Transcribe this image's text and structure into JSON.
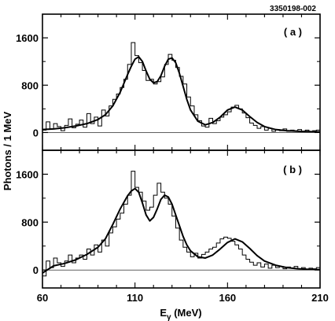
{
  "figure_id": "3350198-002",
  "ylabel": "Photons / 1 MeV",
  "xlabel_main": "E",
  "xlabel_sub": "γ",
  "xlabel_unit": " (MeV)",
  "chart_data": [
    {
      "type": "line",
      "panel_label": "( a )",
      "xlim": [
        60,
        210
      ],
      "ylim": [
        -300,
        2000
      ],
      "x_ticks": [
        "60",
        "110",
        "160",
        "210"
      ],
      "y_ticks": [
        0,
        800,
        1600
      ],
      "y_tick_labels": [
        "0",
        "800",
        "1600"
      ],
      "series": [
        {
          "style": "histogram",
          "x": [
            60,
            62,
            64,
            66,
            68,
            70,
            72,
            74,
            76,
            78,
            80,
            82,
            84,
            86,
            88,
            90,
            92,
            94,
            96,
            98,
            100,
            102,
            104,
            106,
            108,
            110,
            112,
            114,
            116,
            118,
            120,
            122,
            124,
            126,
            128,
            130,
            132,
            134,
            136,
            138,
            140,
            142,
            144,
            146,
            148,
            150,
            152,
            154,
            156,
            158,
            160,
            162,
            164,
            166,
            168,
            170,
            172,
            174,
            176,
            178,
            180,
            182,
            184,
            186,
            188,
            190,
            192,
            194,
            196,
            198,
            200,
            202,
            204,
            206,
            208
          ],
          "y": [
            40,
            180,
            60,
            150,
            100,
            30,
            120,
            230,
            80,
            140,
            210,
            90,
            320,
            150,
            260,
            110,
            380,
            280,
            450,
            560,
            650,
            760,
            900,
            1150,
            1520,
            1300,
            1180,
            1050,
            880,
            900,
            820,
            860,
            940,
            1150,
            1320,
            1220,
            1100,
            950,
            820,
            600,
            450,
            300,
            200,
            110,
            90,
            240,
            150,
            200,
            260,
            300,
            350,
            430,
            460,
            400,
            330,
            250,
            160,
            120,
            70,
            100,
            40,
            70,
            20,
            50,
            30,
            60,
            20,
            40,
            30,
            50,
            20,
            40,
            10,
            30,
            40
          ]
        },
        {
          "style": "curve",
          "x": [
            60,
            66,
            72,
            78,
            84,
            90,
            94,
            98,
            102,
            106,
            108,
            110,
            112,
            114,
            116,
            118,
            120,
            122,
            124,
            126,
            128,
            130,
            132,
            134,
            136,
            138,
            140,
            144,
            148,
            152,
            156,
            160,
            164,
            168,
            172,
            176,
            180,
            186,
            192,
            198,
            204,
            210
          ],
          "y": [
            50,
            60,
            80,
            110,
            150,
            220,
            300,
            450,
            680,
            980,
            1120,
            1240,
            1280,
            1200,
            1040,
            900,
            840,
            860,
            960,
            1120,
            1240,
            1260,
            1180,
            1000,
            780,
            560,
            380,
            190,
            130,
            170,
            260,
            380,
            430,
            380,
            270,
            170,
            100,
            50,
            30,
            20,
            15,
            10
          ]
        }
      ]
    },
    {
      "type": "line",
      "panel_label": "( b )",
      "xlim": [
        60,
        210
      ],
      "ylim": [
        -300,
        2000
      ],
      "x_ticks": [
        "60",
        "110",
        "160",
        "210"
      ],
      "y_ticks": [
        0,
        800,
        1600
      ],
      "y_tick_labels": [
        "0",
        "800",
        "1600"
      ],
      "series": [
        {
          "style": "histogram",
          "x": [
            60,
            62,
            64,
            66,
            68,
            70,
            72,
            74,
            76,
            78,
            80,
            82,
            84,
            86,
            88,
            90,
            92,
            94,
            96,
            98,
            100,
            102,
            104,
            106,
            108,
            110,
            112,
            114,
            116,
            118,
            120,
            122,
            124,
            126,
            128,
            130,
            132,
            134,
            136,
            138,
            140,
            142,
            144,
            146,
            148,
            150,
            152,
            154,
            156,
            158,
            160,
            162,
            164,
            166,
            168,
            170,
            172,
            174,
            176,
            178,
            180,
            182,
            184,
            186,
            188,
            190,
            192,
            194,
            196,
            198,
            200,
            202,
            204,
            206,
            208
          ],
          "y": [
            -100,
            150,
            40,
            200,
            120,
            60,
            150,
            250,
            120,
            200,
            250,
            180,
            350,
            250,
            420,
            300,
            500,
            400,
            620,
            720,
            850,
            950,
            1100,
            1250,
            1650,
            1380,
            1300,
            1150,
            1000,
            1050,
            1250,
            1450,
            1300,
            1200,
            1100,
            900,
            700,
            500,
            380,
            300,
            220,
            280,
            200,
            260,
            300,
            350,
            380,
            450,
            520,
            550,
            530,
            480,
            420,
            350,
            250,
            180,
            130,
            80,
            120,
            50,
            100,
            30,
            80,
            40,
            60,
            20,
            50,
            30,
            60,
            20,
            40,
            10,
            30,
            20,
            40
          ]
        },
        {
          "style": "curve",
          "x": [
            60,
            66,
            72,
            78,
            84,
            90,
            94,
            98,
            102,
            106,
            108,
            110,
            112,
            114,
            116,
            118,
            120,
            122,
            124,
            126,
            128,
            130,
            132,
            134,
            136,
            138,
            140,
            144,
            148,
            152,
            156,
            160,
            164,
            168,
            172,
            176,
            180,
            186,
            192,
            198,
            204,
            210
          ],
          "y": [
            -50,
            70,
            110,
            170,
            260,
            380,
            520,
            760,
            1020,
            1240,
            1320,
            1360,
            1300,
            1120,
            920,
            820,
            880,
            1020,
            1180,
            1250,
            1220,
            1100,
            920,
            740,
            560,
            420,
            320,
            220,
            200,
            250,
            350,
            460,
            520,
            470,
            360,
            240,
            150,
            80,
            40,
            20,
            10,
            5
          ]
        }
      ]
    }
  ]
}
